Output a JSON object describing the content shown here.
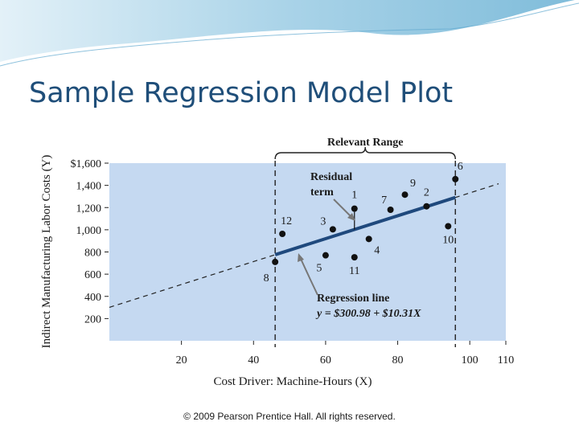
{
  "slide": {
    "title": "Sample Regression Model Plot",
    "footer": "© 2009 Pearson Prentice Hall. All rights reserved."
  },
  "colors": {
    "title": "#1f4e79",
    "plot_bg": "#c5d9f1",
    "regression_line": "#1f497d",
    "banner_blue": "#8fc3dd"
  },
  "chart_data": {
    "type": "scatter",
    "title": "",
    "xlabel": "Cost Driver: Machine-Hours (X)",
    "ylabel": "Indirect Manufacturing Labor Costs (Y)",
    "xlim": [
      0,
      110
    ],
    "ylim": [
      0,
      1600
    ],
    "x_ticks": [
      "20",
      "40",
      "60",
      "80",
      "100",
      "110"
    ],
    "y_ticks": [
      "$1,600",
      "1,400",
      "1,200",
      "1,000",
      "800",
      "600",
      "400",
      "200"
    ],
    "points": [
      {
        "label": "1",
        "x": 68,
        "y": 1190
      },
      {
        "label": "2",
        "x": 88,
        "y": 1211
      },
      {
        "label": "3",
        "x": 62,
        "y": 1004
      },
      {
        "label": "4",
        "x": 72,
        "y": 917
      },
      {
        "label": "5",
        "x": 60,
        "y": 770
      },
      {
        "label": "6",
        "x": 96,
        "y": 1456
      },
      {
        "label": "7",
        "x": 78,
        "y": 1180
      },
      {
        "label": "8",
        "x": 46,
        "y": 710
      },
      {
        "label": "9",
        "x": 82,
        "y": 1316
      },
      {
        "label": "10",
        "x": 94,
        "y": 1032
      },
      {
        "label": "11",
        "x": 68,
        "y": 752
      },
      {
        "label": "12",
        "x": 48,
        "y": 963
      }
    ],
    "regression": {
      "intercept": 300.98,
      "slope": 10.31,
      "label_title": "Regression line",
      "equation": "y = $300.98 + $10.31X"
    },
    "relevant_range": {
      "label": "Relevant Range",
      "x_min": 46,
      "x_max": 96
    },
    "residual_annotation": {
      "line1": "Residual",
      "line2": "term",
      "point": "1"
    },
    "grid": false,
    "legend": "none"
  }
}
